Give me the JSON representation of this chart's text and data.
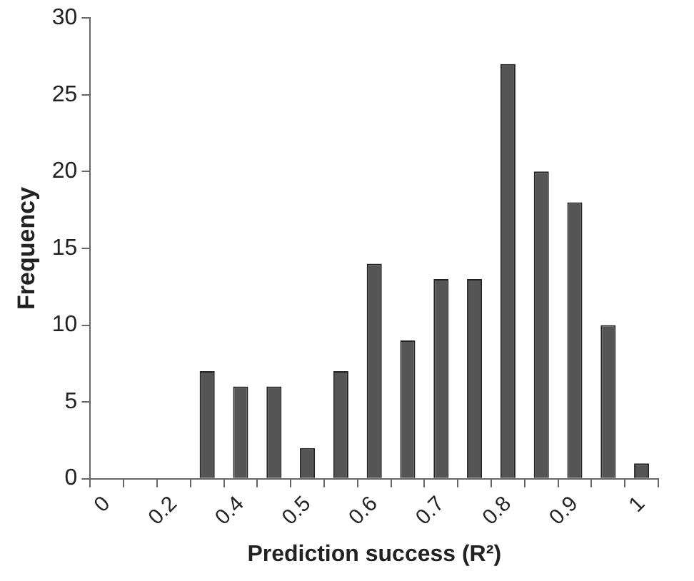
{
  "chart_data": {
    "type": "bar",
    "xlabel": "Prediction success (R²)",
    "ylabel": "Frequency",
    "categories": [
      "0",
      null,
      "0.2",
      null,
      "0.4",
      null,
      "0.5",
      null,
      "0.6",
      null,
      "0.7",
      null,
      "0.8",
      null,
      "0.9",
      null,
      "1"
    ],
    "values": [
      0,
      0,
      0,
      7,
      6,
      6,
      2,
      7,
      14,
      9,
      13,
      13,
      27,
      20,
      18,
      10,
      1
    ],
    "color": "#555555",
    "ylim": [
      0,
      30
    ],
    "yticks": [
      0,
      5,
      10,
      15,
      20,
      25,
      30
    ],
    "grid": false,
    "legend": false
  }
}
